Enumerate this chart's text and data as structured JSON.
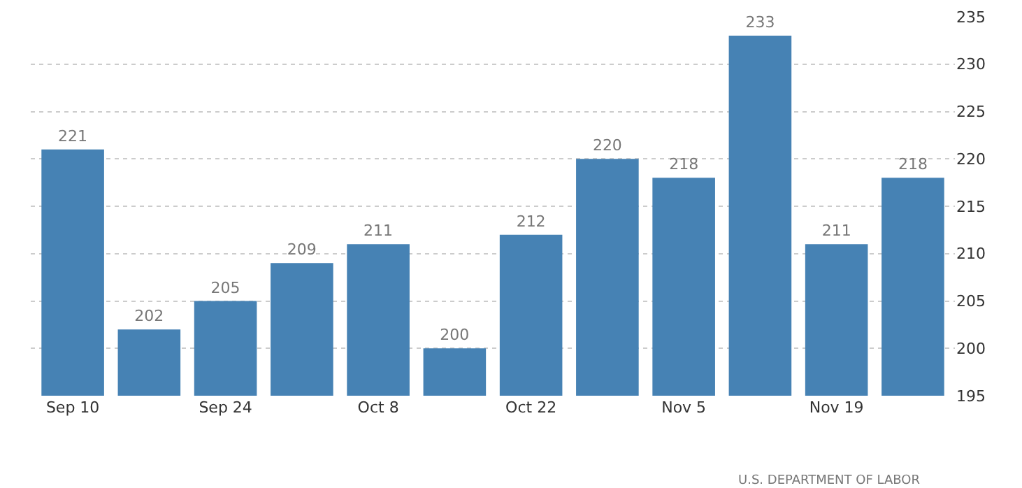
{
  "chart_data": {
    "type": "bar",
    "categories": [
      "Sep 10",
      null,
      "Sep 24",
      null,
      "Oct 8",
      null,
      "Oct 22",
      null,
      "Nov 5",
      null,
      "Nov 19",
      null
    ],
    "values": [
      221,
      202,
      205,
      209,
      211,
      200,
      212,
      220,
      218,
      233,
      211,
      218
    ],
    "color": "#4682b4",
    "ylim": [
      195,
      235
    ],
    "yticks": [
      195,
      200,
      205,
      210,
      215,
      220,
      225,
      230,
      235
    ],
    "grid": "y",
    "data_labels": true,
    "annotations": [
      "U.S. DEPARTMENT OF LABOR"
    ]
  }
}
